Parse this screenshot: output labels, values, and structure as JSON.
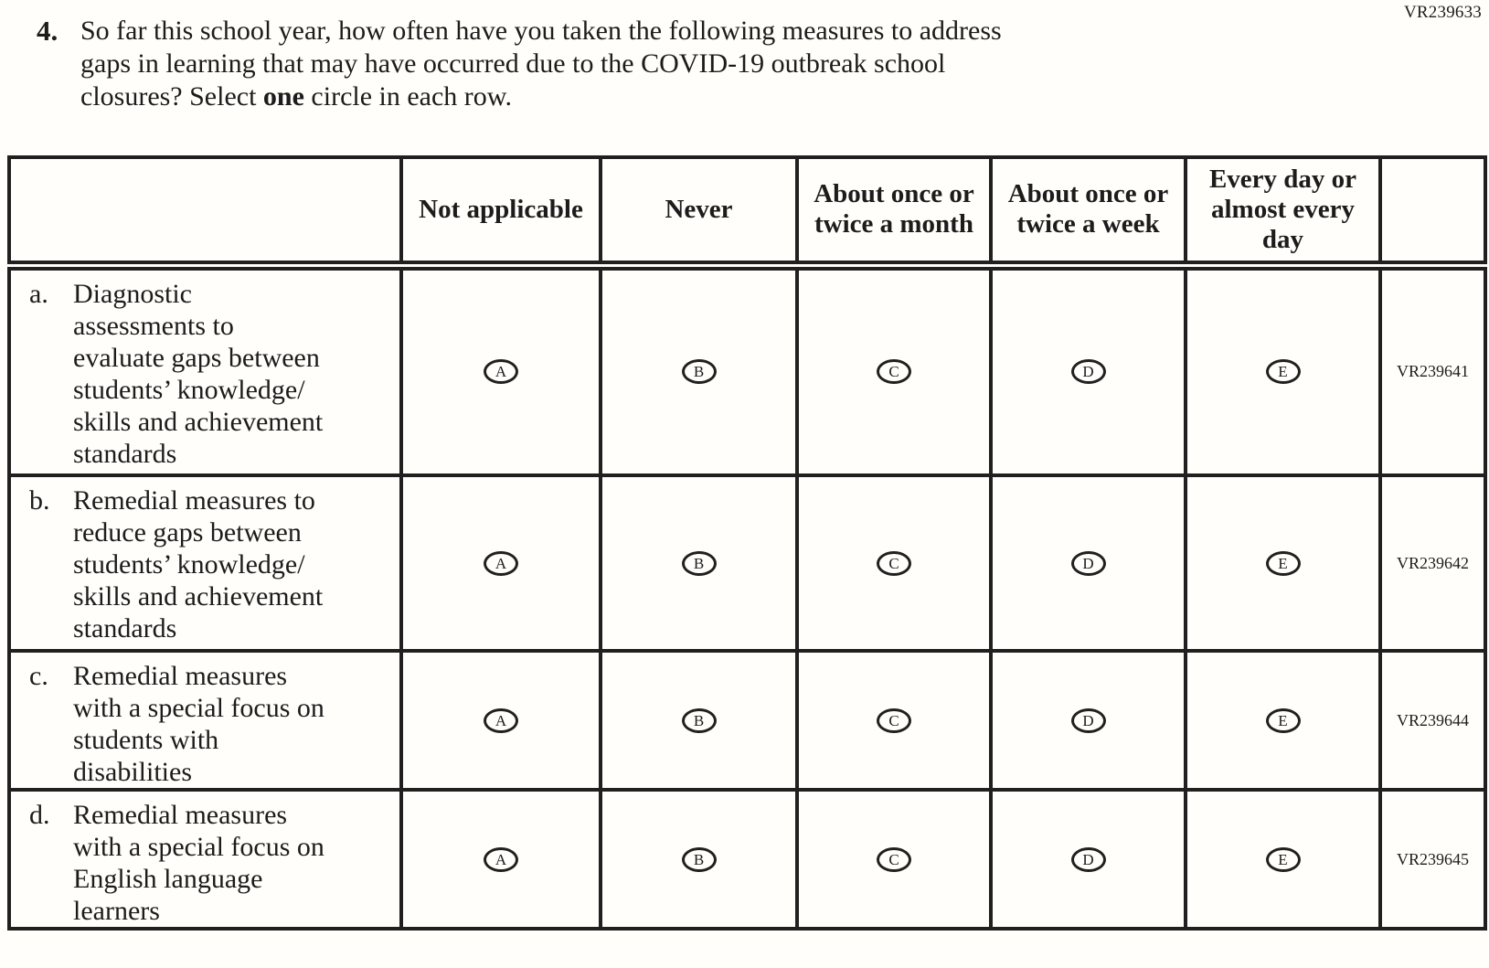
{
  "page": {
    "form_code": "VR239633"
  },
  "question": {
    "number": "4.",
    "line1": "So far this school year, how often have you taken the following measures to address",
    "line2": "gaps in learning that may have occurred due to the COVID-19 outbreak school",
    "line3_pre": "closures? Select ",
    "line3_bold": "one",
    "line3_post": " circle in each row."
  },
  "table": {
    "columns": [
      "Not applicable",
      "Never",
      "About once or twice a month",
      "About once or twice a week",
      "Every day or almost every day"
    ],
    "options": [
      "A",
      "B",
      "C",
      "D",
      "E"
    ],
    "rows": [
      {
        "letter": "a.",
        "lines": [
          "Diagnostic",
          "assessments to",
          "evaluate gaps between",
          "students’ knowledge/",
          "skills and achievement",
          "standards"
        ],
        "code": "VR239641"
      },
      {
        "letter": "b.",
        "lines": [
          "Remedial measures to",
          "reduce gaps between",
          "students’ knowledge/",
          "skills and achievement",
          "standards"
        ],
        "code": "VR239642"
      },
      {
        "letter": "c.",
        "lines": [
          "Remedial measures",
          "with a special focus on",
          "students with",
          "disabilities"
        ],
        "code": "VR239644"
      },
      {
        "letter": "d.",
        "lines": [
          "Remedial measures",
          "with a special focus on",
          "English language",
          "learners"
        ],
        "code": "VR239645"
      }
    ]
  }
}
